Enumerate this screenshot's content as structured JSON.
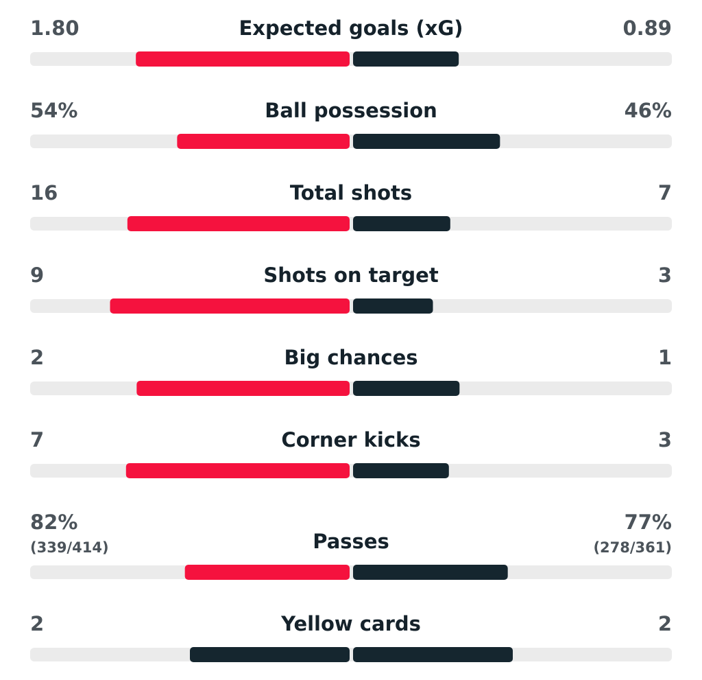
{
  "stats": [
    {
      "label": "Expected goals (xG)",
      "home": {
        "value": 1.8,
        "label": "1.80"
      },
      "away": {
        "value": 0.89,
        "label": "0.89"
      },
      "colors": [
        "#f5123e",
        "#15262f"
      ]
    },
    {
      "label": "Ball possession",
      "home": {
        "value": 54,
        "label": "54%"
      },
      "away": {
        "value": 46,
        "label": "46%"
      },
      "colors": [
        "#f5123e",
        "#15262f"
      ]
    },
    {
      "label": "Total shots",
      "home": {
        "value": 16,
        "label": "16"
      },
      "away": {
        "value": 7,
        "label": "7"
      },
      "colors": [
        "#f5123e",
        "#15262f"
      ]
    },
    {
      "label": "Shots on target",
      "home": {
        "value": 9,
        "label": "9"
      },
      "away": {
        "value": 3,
        "label": "3"
      },
      "colors": [
        "#f5123e",
        "#15262f"
      ]
    },
    {
      "label": "Big chances",
      "home": {
        "value": 2,
        "label": "2"
      },
      "away": {
        "value": 1,
        "label": "1"
      },
      "colors": [
        "#f5123e",
        "#15262f"
      ]
    },
    {
      "label": "Corner kicks",
      "home": {
        "value": 7,
        "label": "7"
      },
      "away": {
        "value": 3,
        "label": "3"
      },
      "colors": [
        "#f5123e",
        "#15262f"
      ]
    },
    {
      "label": "Passes",
      "home": {
        "value": 82,
        "label": "82%",
        "detail": "(339/414)"
      },
      "away": {
        "value": 77,
        "label": "77%",
        "detail": "(278/361)"
      },
      "colors": [
        "#f5123e",
        "#15262f"
      ]
    },
    {
      "label": "Yellow cards",
      "home": {
        "value": 2,
        "label": "2"
      },
      "away": {
        "value": 2,
        "label": "2"
      },
      "colors": [
        "#15262f",
        "#15262f"
      ]
    }
  ]
}
